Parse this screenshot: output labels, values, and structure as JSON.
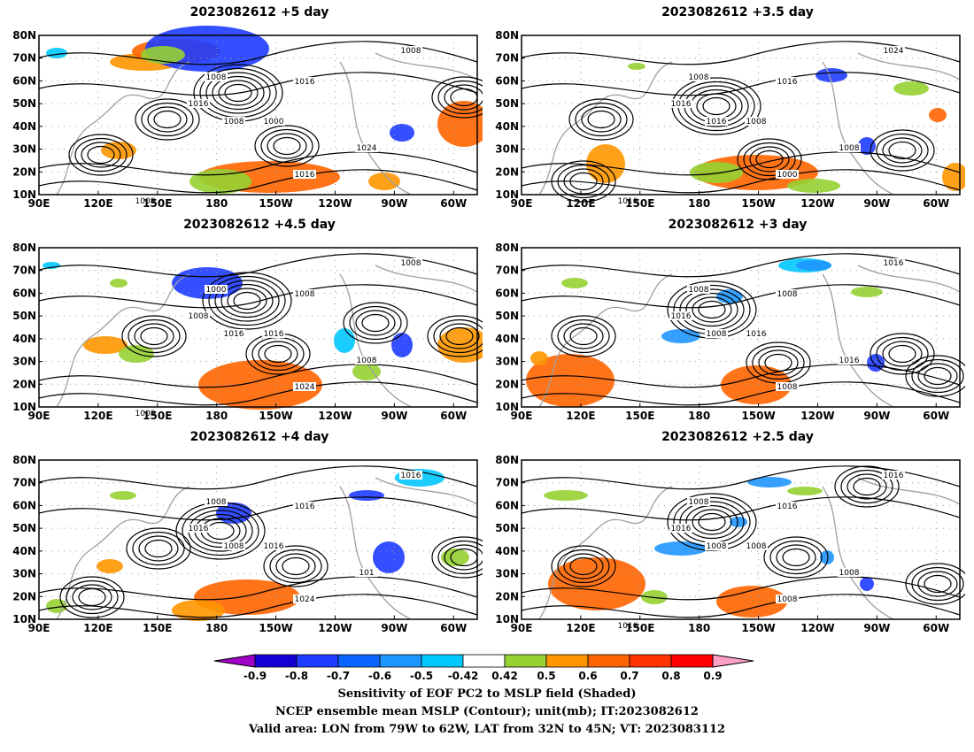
{
  "panels": [
    {
      "title": "2023082612 +5 day",
      "cbox": [
        [
          78,
          42,
          1.0
        ],
        [
          62,
          38,
          0.8
        ]
      ]
    },
    {
      "title": "2023082612 +3.5 day",
      "cbox": [
        [
          80,
          38,
          0.8
        ],
        [
          98,
          62,
          0.7
        ]
      ]
    },
    {
      "title": "2023082612 +4.5 day",
      "cbox": [
        [
          78,
          38,
          1.0
        ],
        [
          100,
          65,
          0.7
        ]
      ]
    },
    {
      "title": "2023082612 +3 day",
      "cbox": [
        [
          80,
          40,
          0.8
        ],
        [
          98,
          60,
          0.8
        ]
      ]
    },
    {
      "title": "2023082612 +4 day",
      "cbox": [
        [
          80,
          40,
          0.9
        ],
        [
          60,
          30,
          0.5
        ]
      ]
    },
    {
      "title": "2023082612 +2.5 day",
      "cbox": [
        [
          80,
          38,
          0.7
        ],
        [
          97,
          62,
          0.8
        ]
      ]
    }
  ],
  "axes": {
    "x_ticks": [
      "90E",
      "120E",
      "150E",
      "180",
      "150W",
      "120W",
      "90W",
      "60W"
    ],
    "y_ticks": [
      "10N",
      "20N",
      "30N",
      "40N",
      "50N",
      "60N",
      "70N",
      "80N"
    ]
  },
  "contour_labels": {
    "p0": [
      "1008",
      "1016",
      "1008",
      "1016",
      "1000",
      "1016",
      "1008",
      "1024",
      "1008"
    ],
    "p1": [
      "1008",
      "1016",
      "1016",
      "1016",
      "1008",
      "1000",
      "1024",
      "1008",
      "1016"
    ],
    "p2": [
      "1000",
      "1008",
      "1016",
      "1008",
      "1016",
      "1024",
      "1008",
      "1008",
      "1008"
    ],
    "p3": [
      "1008",
      "1016",
      "1008",
      "1008",
      "1016",
      "1008",
      "1016",
      "1016"
    ],
    "p4": [
      "1008",
      "1016",
      "1008",
      "1016",
      "1016",
      "1024",
      "1016",
      "101"
    ],
    "p5": [
      "1008",
      "1016",
      "1008",
      "1016",
      "1008",
      "1008",
      "1016",
      "1008",
      "1016"
    ]
  },
  "colorbar": {
    "labels": [
      "-0.9",
      "-0.8",
      "-0.7",
      "-0.6",
      "-0.5",
      "-0.42",
      "0.42",
      "0.5",
      "0.6",
      "0.7",
      "0.8",
      "0.9"
    ],
    "colors": [
      "#a000c8",
      "#1400d2",
      "#1e3cff",
      "#0a64ff",
      "#1e96ff",
      "#00c8ff",
      "#ffffff",
      "#96d232",
      "#ff9600",
      "#ff6400",
      "#ff3200",
      "#ff0000",
      "#ffa0c8"
    ]
  },
  "captions": {
    "line1": "Sensitivity of EOF PC2 to MSLP field (Shaded)",
    "line2": "NCEP ensemble mean MSLP (Contour); unit(mb); IT:2023082612",
    "line3": "Valid area: LON from 79W to 62W, LAT from 32N to 45N; VT: 2023083112"
  }
}
